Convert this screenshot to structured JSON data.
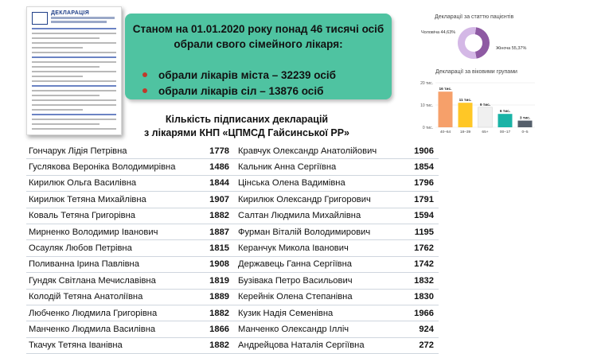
{
  "form": {
    "title": "ДЕКЛАРАЦІЯ"
  },
  "info": {
    "line1": "Станом на 01.01.2020 року понад 46 тисячі осіб",
    "line2": "обрали свого сімейного лікаря:",
    "bullets": [
      "обрали лікарів міста – 32239 осіб",
      "обрали лікарів сіл – 13876 осіб"
    ]
  },
  "subtitle": {
    "line1": "Кількість підписаних декларацій",
    "line2": "з лікарями КНП «ЦПМСД Гайсинської РР»"
  },
  "pie_chart": {
    "title": "Декларації за статтю пацієнтів",
    "slices": [
      {
        "label": "Чоловіча 44,63%",
        "value": 44.63,
        "color": "#8e5aa3"
      },
      {
        "label": "Жіноча 55,37%",
        "value": 55.37,
        "color": "#d4b8e6"
      }
    ]
  },
  "chart_data": {
    "type": "bar",
    "title": "Декларації за віковими групами",
    "categories": [
      "40–64",
      "18–39",
      "65+",
      "00–17",
      "0–5"
    ],
    "values": [
      16,
      11,
      9,
      6,
      3
    ],
    "data_labels": [
      "16 тис.",
      "11 тис.",
      "9 тис.",
      "6 тис.",
      "3 тис."
    ],
    "y_ticks": [
      "20 тис.",
      "10 тис.",
      "0 тис."
    ],
    "ylim": [
      0,
      20
    ],
    "colors": [
      "#f6a06a",
      "#ffc726",
      "#f0f0f0",
      "#1ab3a6",
      "#555f6b"
    ]
  },
  "table": {
    "rows": [
      {
        "left_name": "Гончарук Лідія Петрівна",
        "left_value": "1778",
        "right_name": "Кравчук Олександр Анатолійович",
        "right_value": "1906"
      },
      {
        "left_name": "Гуслякова Вероніка Володимирівна",
        "left_value": "1486",
        "right_name": "Кальник Анна Сергіївна",
        "right_value": "1854"
      },
      {
        "left_name": "Кирилюк Ольга Василівна",
        "left_value": "1844",
        "right_name": "Цінська Олена Вадимівна",
        "right_value": "1796"
      },
      {
        "left_name": "Кирилюк Тетяна Михайлівна",
        "left_value": "1907",
        "right_name": "Кирилюк Олександр Григорович",
        "right_value": "1791"
      },
      {
        "left_name": "Коваль Тетяна Григорівна",
        "left_value": "1882",
        "right_name": "Салтан Людмила Михайлівна",
        "right_value": "1594"
      },
      {
        "left_name": "Мирненко Володимир Іванович",
        "left_value": "1887",
        "right_name": "Фурман Віталій Володимирович",
        "right_value": "1195"
      },
      {
        "left_name": "Осауляк Любов Петрівна",
        "left_value": "1815",
        "right_name": "Керанчук Микола Іванович",
        "right_value": "1762"
      },
      {
        "left_name": "Поливанна Ірина Павлівна",
        "left_value": "1908",
        "right_name": "Державець Ганна Сергіївна",
        "right_value": "1742"
      },
      {
        "left_name": "Гундяк Світлана Мечиславівна",
        "left_value": "1819",
        "right_name": "Бузівака Петро Васильович",
        "right_value": "1832"
      },
      {
        "left_name": "Колодій Тетяна Анатоліївна",
        "left_value": "1889",
        "right_name": "Керейнік Олена Степанівна",
        "right_value": "1830"
      },
      {
        "left_name": "Любченко Людмила Григорівна",
        "left_value": "1882",
        "right_name": "Кузик Надія Семенівна",
        "right_value": "1966"
      },
      {
        "left_name": "Манченко Людмила Василівна",
        "left_value": "1866",
        "right_name": "Манченко Олександр Ілліч",
        "right_value": "924"
      },
      {
        "left_name": "Ткачук Тетяна Іванівна",
        "left_value": "1882",
        "right_name": "Андрейцова Наталія Сергіївна",
        "right_value": "272"
      }
    ]
  }
}
